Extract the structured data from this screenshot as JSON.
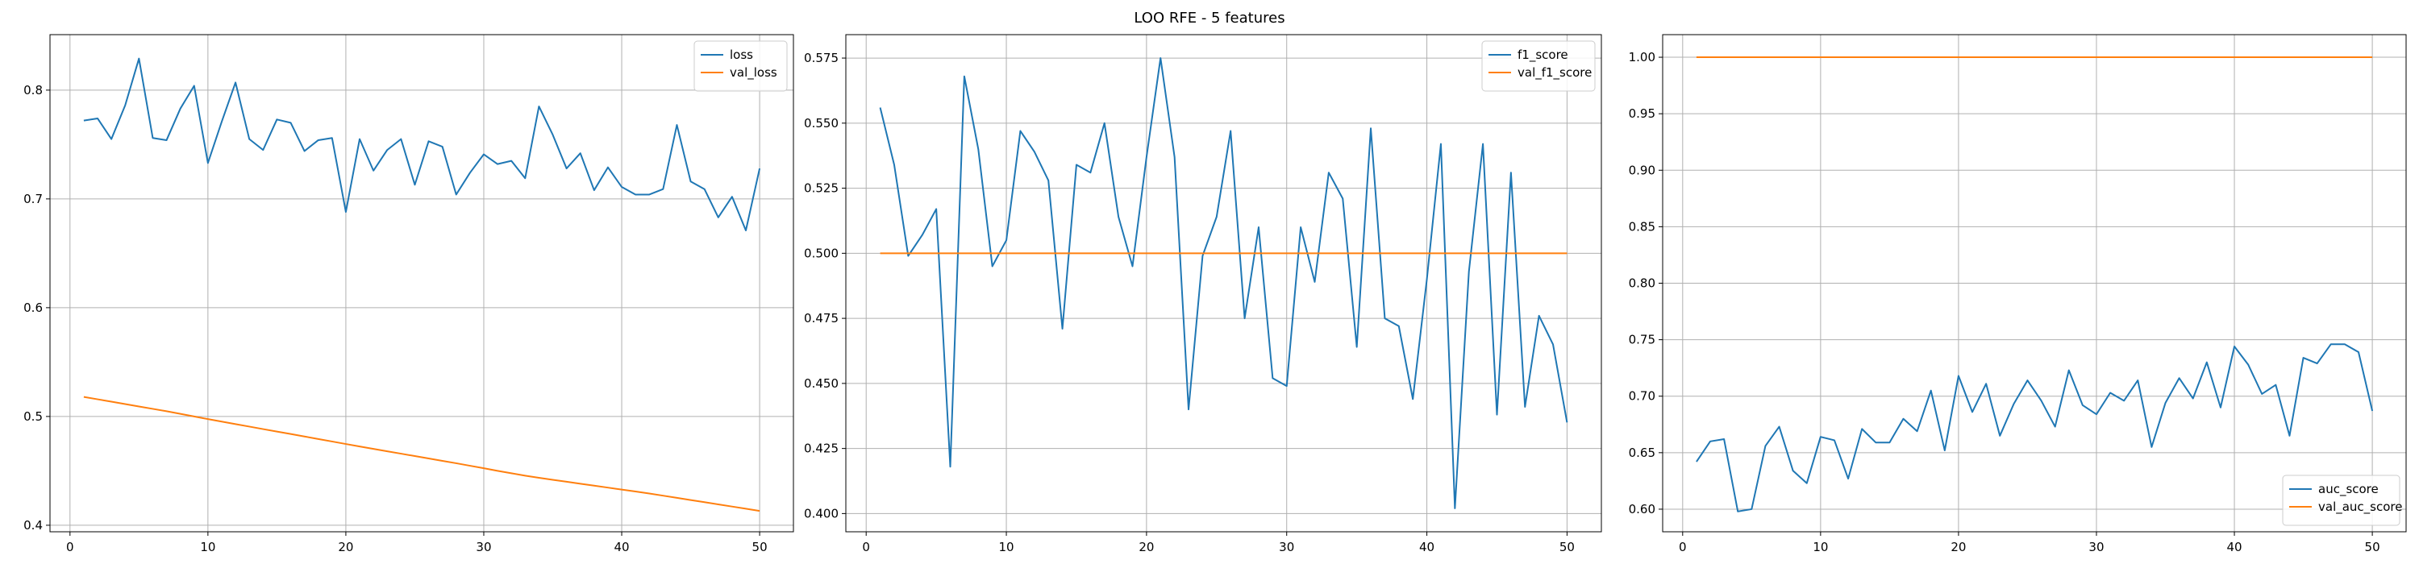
{
  "figure": {
    "title": "LOO RFE - 5 features"
  },
  "colors": {
    "series_blue": "#1f77b4",
    "series_orange": "#ff7f0e",
    "grid": "#b0b0b0",
    "axes": "#000000"
  },
  "chart_data": [
    {
      "type": "line",
      "title": "",
      "xlabel": "",
      "ylabel": "",
      "xlim": [
        -1.45,
        52.45
      ],
      "ylim": [
        0.394,
        0.851
      ],
      "xticks": [
        0,
        10,
        20,
        30,
        40,
        50
      ],
      "xtick_labels": [
        "0",
        "10",
        "20",
        "30",
        "40",
        "50"
      ],
      "yticks": [
        0.4,
        0.5,
        0.6,
        0.7,
        0.8
      ],
      "ytick_labels": [
        "0.4",
        "0.5",
        "0.6",
        "0.7",
        "0.8"
      ],
      "grid": true,
      "legend_position": "upper right",
      "x": [
        1,
        2,
        3,
        4,
        5,
        6,
        7,
        8,
        9,
        10,
        11,
        12,
        13,
        14,
        15,
        16,
        17,
        18,
        19,
        20,
        21,
        22,
        23,
        24,
        25,
        26,
        27,
        28,
        29,
        30,
        31,
        32,
        33,
        34,
        35,
        36,
        37,
        38,
        39,
        40,
        41,
        42,
        43,
        44,
        45,
        46,
        47,
        48,
        49,
        50
      ],
      "series": [
        {
          "name": "loss",
          "color": "#1f77b4",
          "values": [
            0.772,
            0.774,
            0.755,
            0.786,
            0.829,
            0.756,
            0.754,
            0.783,
            0.804,
            0.733,
            0.771,
            0.807,
            0.755,
            0.745,
            0.773,
            0.77,
            0.744,
            0.754,
            0.756,
            0.688,
            0.755,
            0.726,
            0.745,
            0.755,
            0.713,
            0.753,
            0.748,
            0.704,
            0.724,
            0.741,
            0.732,
            0.735,
            0.719,
            0.785,
            0.759,
            0.728,
            0.742,
            0.708,
            0.729,
            0.711,
            0.704,
            0.704,
            0.709,
            0.768,
            0.716,
            0.709,
            0.683,
            0.702,
            0.671,
            0.728
          ]
        },
        {
          "name": "val_loss",
          "color": "#ff7f0e",
          "values": [
            0.518,
            0.5158,
            0.5136,
            0.5114,
            0.5092,
            0.507,
            0.5048,
            0.5024,
            0.5,
            0.4976,
            0.4953,
            0.493,
            0.4907,
            0.4884,
            0.4861,
            0.4839,
            0.4816,
            0.4793,
            0.477,
            0.4747,
            0.4724,
            0.4702,
            0.468,
            0.4658,
            0.4636,
            0.4614,
            0.4592,
            0.457,
            0.4547,
            0.4524,
            0.45,
            0.4478,
            0.4456,
            0.4436,
            0.4418,
            0.44,
            0.4382,
            0.4364,
            0.4346,
            0.4328,
            0.431,
            0.4292,
            0.4272,
            0.4252,
            0.4232,
            0.4212,
            0.4192,
            0.4172,
            0.4152,
            0.4132
          ]
        }
      ]
    },
    {
      "type": "line",
      "title": "",
      "xlabel": "",
      "ylabel": "",
      "xlim": [
        -1.45,
        52.45
      ],
      "ylim": [
        0.393,
        0.584
      ],
      "xticks": [
        0,
        10,
        20,
        30,
        40,
        50
      ],
      "xtick_labels": [
        "0",
        "10",
        "20",
        "30",
        "40",
        "50"
      ],
      "yticks": [
        0.4,
        0.425,
        0.45,
        0.475,
        0.5,
        0.525,
        0.55,
        0.575
      ],
      "ytick_labels": [
        "0.400",
        "0.425",
        "0.450",
        "0.475",
        "0.500",
        "0.525",
        "0.550",
        "0.575"
      ],
      "grid": true,
      "legend_position": "upper right",
      "x": [
        1,
        2,
        3,
        4,
        5,
        6,
        7,
        8,
        9,
        10,
        11,
        12,
        13,
        14,
        15,
        16,
        17,
        18,
        19,
        20,
        21,
        22,
        23,
        24,
        25,
        26,
        27,
        28,
        29,
        30,
        31,
        32,
        33,
        34,
        35,
        36,
        37,
        38,
        39,
        40,
        41,
        42,
        43,
        44,
        45,
        46,
        47,
        48,
        49,
        50
      ],
      "series": [
        {
          "name": "f1_score",
          "color": "#1f77b4",
          "values": [
            0.556,
            0.534,
            0.499,
            0.507,
            0.517,
            0.418,
            0.568,
            0.54,
            0.495,
            0.505,
            0.547,
            0.539,
            0.528,
            0.471,
            0.534,
            0.531,
            0.55,
            0.514,
            0.495,
            0.537,
            0.575,
            0.537,
            0.44,
            0.499,
            0.514,
            0.547,
            0.475,
            0.51,
            0.452,
            0.449,
            0.51,
            0.489,
            0.531,
            0.521,
            0.464,
            0.548,
            0.475,
            0.472,
            0.444,
            0.49,
            0.542,
            0.402,
            0.493,
            0.542,
            0.438,
            0.531,
            0.441,
            0.476,
            0.465,
            0.435
          ]
        },
        {
          "name": "val_f1_score",
          "color": "#ff7f0e",
          "values": [
            0.5,
            0.5,
            0.5,
            0.5,
            0.5,
            0.5,
            0.5,
            0.5,
            0.5,
            0.5,
            0.5,
            0.5,
            0.5,
            0.5,
            0.5,
            0.5,
            0.5,
            0.5,
            0.5,
            0.5,
            0.5,
            0.5,
            0.5,
            0.5,
            0.5,
            0.5,
            0.5,
            0.5,
            0.5,
            0.5,
            0.5,
            0.5,
            0.5,
            0.5,
            0.5,
            0.5,
            0.5,
            0.5,
            0.5,
            0.5,
            0.5,
            0.5,
            0.5,
            0.5,
            0.5,
            0.5,
            0.5,
            0.5,
            0.5,
            0.5
          ]
        }
      ]
    },
    {
      "type": "line",
      "title": "",
      "xlabel": "",
      "ylabel": "",
      "xlim": [
        -1.45,
        52.45
      ],
      "ylim": [
        0.58,
        1.02
      ],
      "xticks": [
        0,
        10,
        20,
        30,
        40,
        50
      ],
      "xtick_labels": [
        "0",
        "10",
        "20",
        "30",
        "40",
        "50"
      ],
      "yticks": [
        0.6,
        0.65,
        0.7,
        0.75,
        0.8,
        0.85,
        0.9,
        0.95,
        1.0
      ],
      "ytick_labels": [
        "0.60",
        "0.65",
        "0.70",
        "0.75",
        "0.80",
        "0.85",
        "0.90",
        "0.95",
        "1.00"
      ],
      "grid": true,
      "legend_position": "lower right",
      "x": [
        1,
        2,
        3,
        4,
        5,
        6,
        7,
        8,
        9,
        10,
        11,
        12,
        13,
        14,
        15,
        16,
        17,
        18,
        19,
        20,
        21,
        22,
        23,
        24,
        25,
        26,
        27,
        28,
        29,
        30,
        31,
        32,
        33,
        34,
        35,
        36,
        37,
        38,
        39,
        40,
        41,
        42,
        43,
        44,
        45,
        46,
        47,
        48,
        49,
        50
      ],
      "series": [
        {
          "name": "auc_score",
          "color": "#1f77b4",
          "values": [
            0.642,
            0.66,
            0.662,
            0.598,
            0.6,
            0.656,
            0.673,
            0.634,
            0.623,
            0.664,
            0.661,
            0.627,
            0.671,
            0.659,
            0.659,
            0.68,
            0.669,
            0.705,
            0.652,
            0.718,
            0.686,
            0.711,
            0.665,
            0.693,
            0.714,
            0.696,
            0.673,
            0.723,
            0.692,
            0.684,
            0.703,
            0.696,
            0.714,
            0.655,
            0.694,
            0.716,
            0.698,
            0.73,
            0.69,
            0.744,
            0.728,
            0.702,
            0.71,
            0.665,
            0.734,
            0.729,
            0.746,
            0.746,
            0.739,
            0.687
          ]
        },
        {
          "name": "val_auc_score",
          "color": "#ff7f0e",
          "values": [
            1.0,
            1.0,
            1.0,
            1.0,
            1.0,
            1.0,
            1.0,
            1.0,
            1.0,
            1.0,
            1.0,
            1.0,
            1.0,
            1.0,
            1.0,
            1.0,
            1.0,
            1.0,
            1.0,
            1.0,
            1.0,
            1.0,
            1.0,
            1.0,
            1.0,
            1.0,
            1.0,
            1.0,
            1.0,
            1.0,
            1.0,
            1.0,
            1.0,
            1.0,
            1.0,
            1.0,
            1.0,
            1.0,
            1.0,
            1.0,
            1.0,
            1.0,
            1.0,
            1.0,
            1.0,
            1.0,
            1.0,
            1.0,
            1.0,
            1.0
          ]
        }
      ]
    }
  ]
}
